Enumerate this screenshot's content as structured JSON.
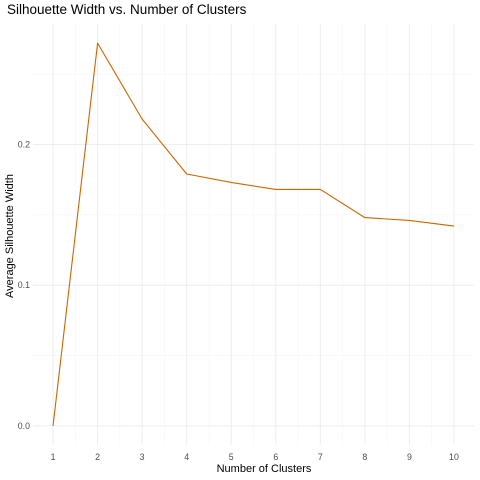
{
  "chart_data": {
    "type": "line",
    "title": "Silhouette Width vs. Number of Clusters",
    "xlabel": "Number of Clusters",
    "ylabel": "Average Silhouette Width",
    "x": [
      1,
      2,
      3,
      4,
      5,
      6,
      7,
      8,
      9,
      10
    ],
    "x_tick_labels": [
      "1",
      "2",
      "3",
      "4",
      "5",
      "6",
      "7",
      "8",
      "9",
      "10"
    ],
    "y_tick_values": [
      0.0,
      0.1,
      0.2
    ],
    "y_tick_labels": [
      "0.0",
      "0.1",
      "0.2"
    ],
    "series": [
      {
        "color": "#cc6600",
        "values": [
          0.0,
          0.272,
          0.218,
          0.179,
          0.173,
          0.168,
          0.168,
          0.148,
          0.146,
          0.142
        ]
      }
    ],
    "xlim": [
      0.55,
      10.45
    ],
    "ylim": [
      -0.0136,
      0.2856
    ],
    "grid": true,
    "legend": "none"
  }
}
